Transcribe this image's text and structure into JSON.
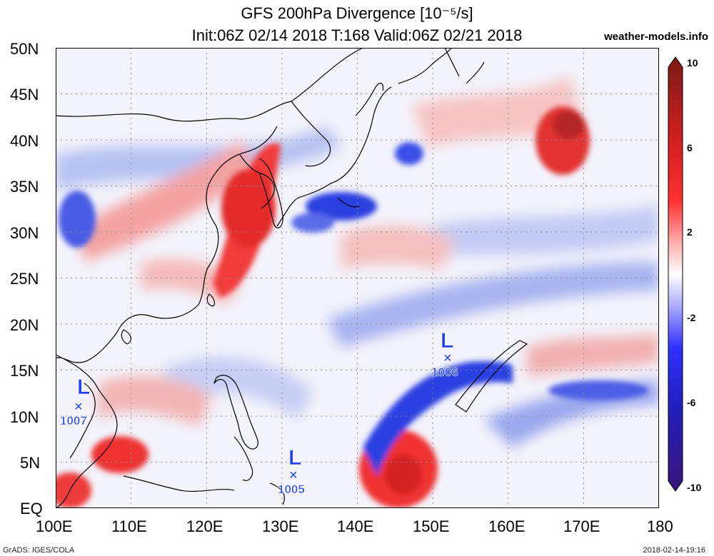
{
  "title": {
    "line1": "GFS 200hPa Divergence [10⁻⁵/s]",
    "line2": "Init:06Z 02/14 2018 T:168 Valid:06Z 02/21 2018"
  },
  "site": "weather-models.info",
  "y_ticks": [
    "50N",
    "45N",
    "40N",
    "35N",
    "30N",
    "25N",
    "20N",
    "15N",
    "10N",
    "5N",
    "EQ"
  ],
  "x_ticks": [
    "100E",
    "110E",
    "120E",
    "130E",
    "140E",
    "150E",
    "160E",
    "170E",
    "180"
  ],
  "colorbar": {
    "labels": [
      "10",
      "6",
      "2",
      "-2",
      "-6",
      "-10"
    ],
    "colors": [
      "#6a1a10",
      "#c61c1c",
      "#ff1f1f",
      "#ff8c8c",
      "#ffffff",
      "#8c8cff",
      "#1f1fff",
      "#1414a0",
      "#3a1478"
    ]
  },
  "lows": [
    {
      "symbol": "L",
      "pressure": "1007",
      "lon": 103,
      "lat": 11
    },
    {
      "symbol": "L",
      "pressure": "1005",
      "lon": 132,
      "lat": 3.5
    },
    {
      "symbol": "L",
      "pressure": "1006",
      "lon": 152.5,
      "lat": 16.3
    }
  ],
  "footer": {
    "left": "GrADS: IGES/COLA",
    "right": "2018-02-14-19:16"
  }
}
